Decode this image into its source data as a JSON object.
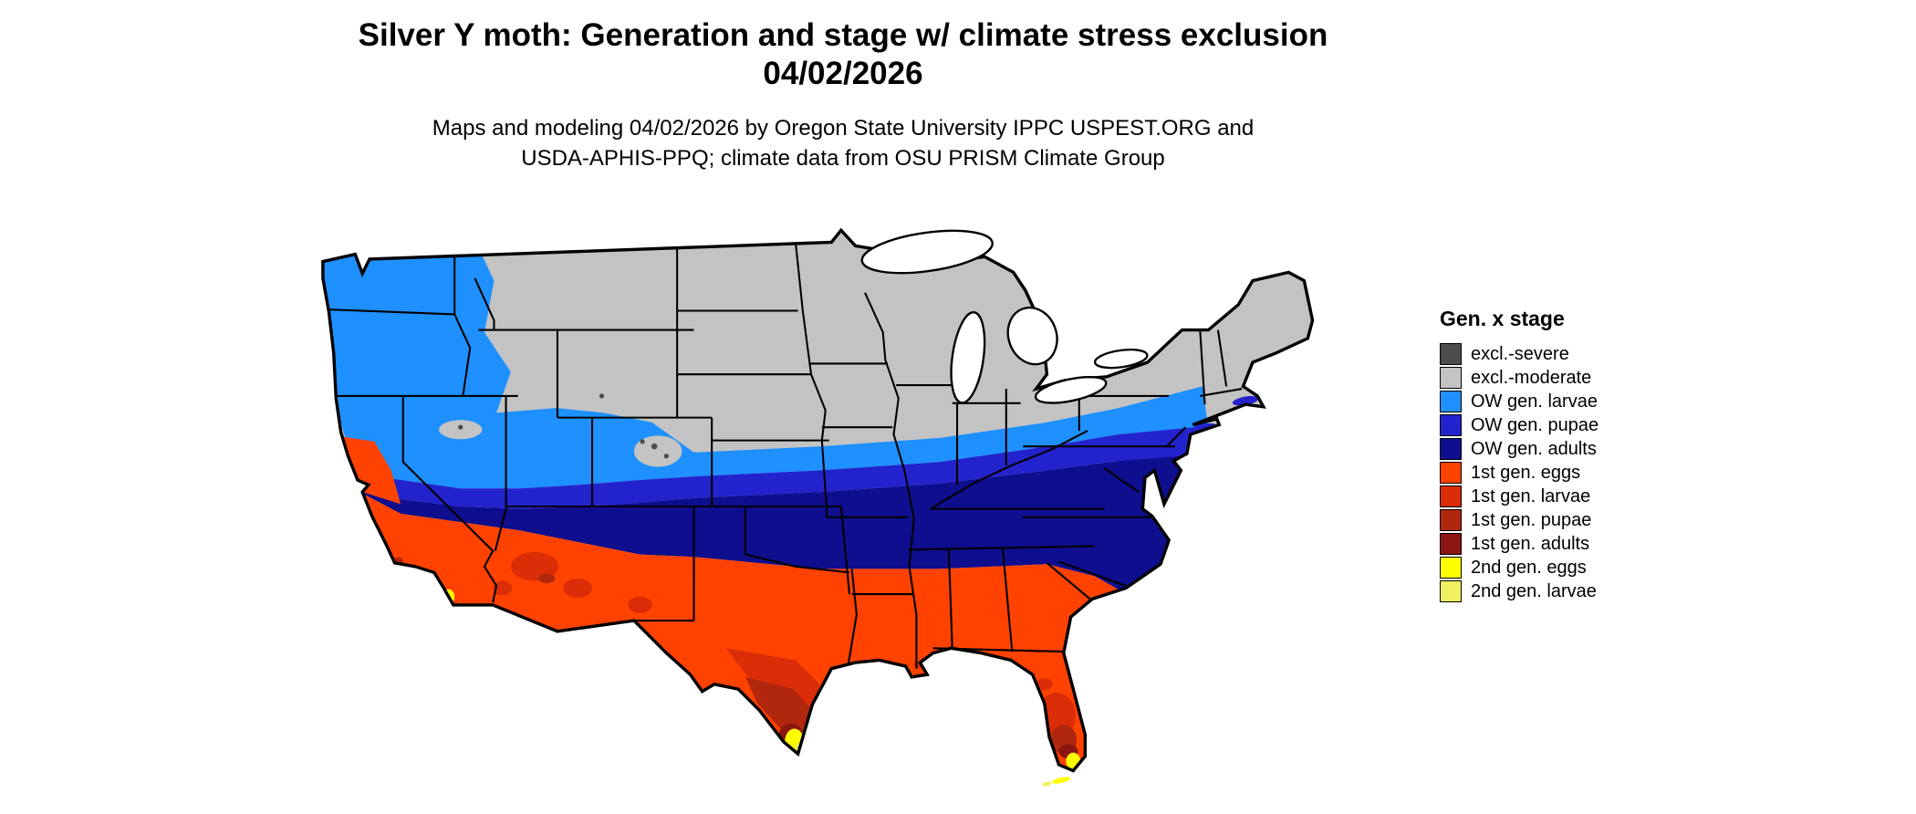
{
  "header": {
    "title_line1": "Silver Y moth: Generation and stage w/ climate stress exclusion",
    "title_line2": "04/02/2026",
    "subtitle_line1": "Maps and modeling 04/02/2026 by Oregon State University IPPC USPEST.ORG and",
    "subtitle_line2": "USDA-APHIS-PPQ; climate data from OSU PRISM Climate Group"
  },
  "map": {
    "region_shown": "Continental United States",
    "kind": "choropleth of moth generation and life stage"
  },
  "legend": {
    "title": "Gen. x stage",
    "items": [
      {
        "id": "excl_severe",
        "label": "excl.-severe",
        "color": "#4d4d4d"
      },
      {
        "id": "excl_moderate",
        "label": "excl.-moderate",
        "color": "#c3c3c3"
      },
      {
        "id": "ow_larvae",
        "label": "OW gen. larvae",
        "color": "#1e90ff"
      },
      {
        "id": "ow_pupae",
        "label": "OW gen. pupae",
        "color": "#2323cd"
      },
      {
        "id": "ow_adults",
        "label": "OW gen. adults",
        "color": "#0e0e8f"
      },
      {
        "id": "g1_eggs",
        "label": "1st gen. eggs",
        "color": "#ff4200"
      },
      {
        "id": "g1_larvae",
        "label": "1st gen. larvae",
        "color": "#da2d08"
      },
      {
        "id": "g1_pupae",
        "label": "1st gen. pupae",
        "color": "#b0270e"
      },
      {
        "id": "g1_adults",
        "label": "1st gen. adults",
        "color": "#8b1510"
      },
      {
        "id": "g2_eggs",
        "label": "2nd gen. eggs",
        "color": "#ffff00"
      },
      {
        "id": "g2_larvae",
        "label": "2nd gen. larvae",
        "color": "#f0f060"
      }
    ]
  }
}
